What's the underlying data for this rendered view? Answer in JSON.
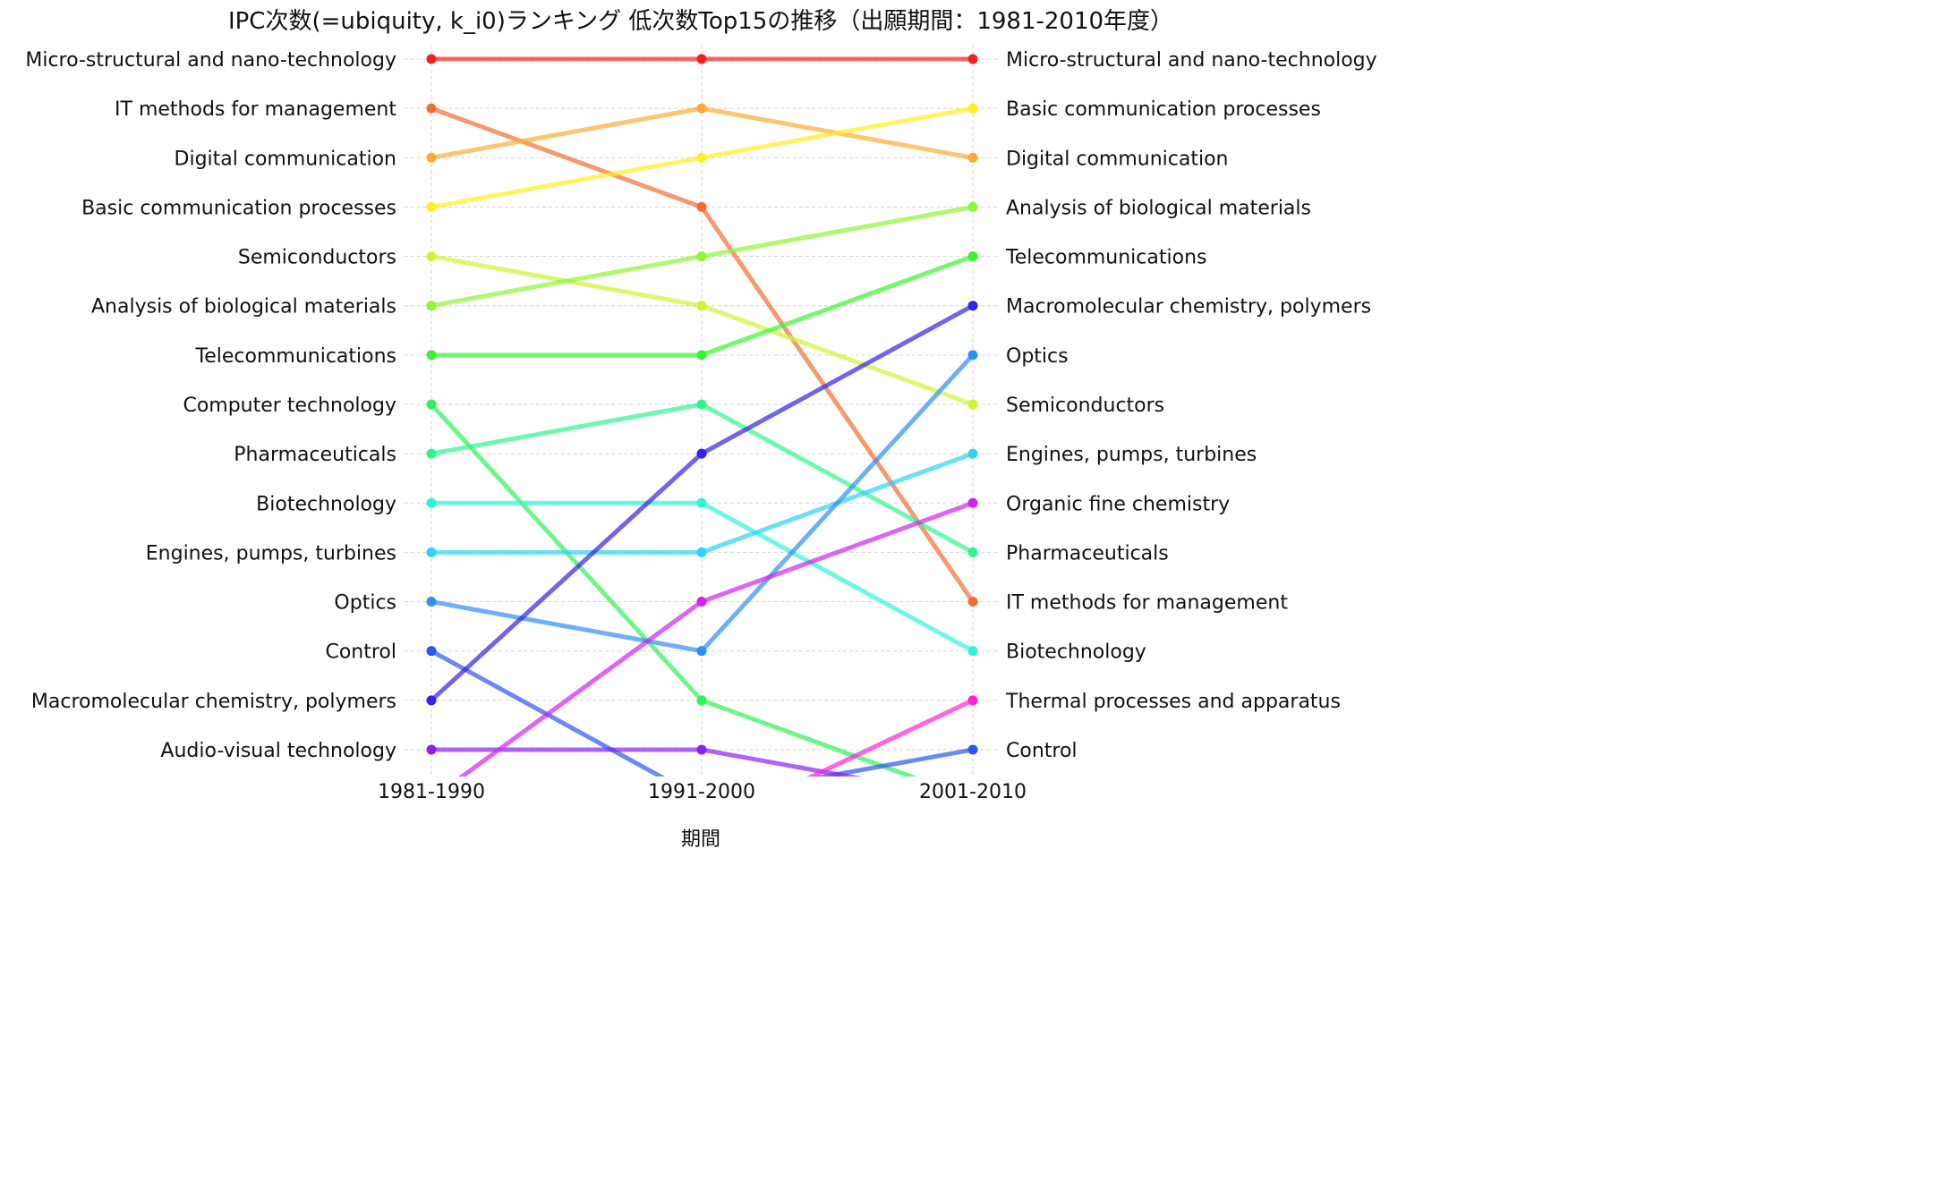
{
  "chart_data": {
    "type": "line",
    "title": "IPC次数(=ubiquity, k_i0)ランキング 低次数Top15の推移（出願期間：1981-2010年度）",
    "xlabel": "期間",
    "ylabel": "",
    "x": [
      "1981-1990",
      "1991-2000",
      "2001-2010"
    ],
    "y_axis": "rank (1 = top), inverted, shown ranks 1-15",
    "ylim": [
      15.6,
      0.9
    ],
    "grid": true,
    "legend": "none",
    "left_labels": [
      "Micro-structural and nano-technology",
      "IT methods for management",
      "Digital communication",
      "Basic communication processes",
      "Semiconductors",
      "Analysis of biological materials",
      "Telecommunications",
      "Computer technology",
      "Pharmaceuticals",
      "Biotechnology",
      "Engines, pumps, turbines",
      "Optics",
      "Control",
      "Macromolecular chemistry, polymers",
      "Audio-visual technology"
    ],
    "right_labels": [
      "Micro-structural and nano-technology",
      "Basic communication processes",
      "Digital communication",
      "Analysis of biological materials",
      "Telecommunications",
      "Macromolecular chemistry, polymers",
      "Optics",
      "Semiconductors",
      "Engines, pumps, turbines",
      "Organic fine chemistry",
      "Pharmaceuticals",
      "IT methods for management",
      "Biotechnology",
      "Thermal processes and apparatus",
      "Control"
    ],
    "series": [
      {
        "name": "Micro-structural and nano-technology",
        "color": "#ee2222",
        "values": [
          1,
          1,
          1
        ]
      },
      {
        "name": "IT methods for management",
        "color": "#f46d2f",
        "values": [
          2,
          4,
          12
        ]
      },
      {
        "name": "Digital communication",
        "color": "#fdab33",
        "values": [
          3,
          2,
          3
        ]
      },
      {
        "name": "Basic communication processes",
        "color": "#ffee22",
        "values": [
          4,
          3,
          2
        ]
      },
      {
        "name": "Semiconductors",
        "color": "#ccf531",
        "values": [
          5,
          6,
          8
        ]
      },
      {
        "name": "Analysis of biological materials",
        "color": "#8ef532",
        "values": [
          6,
          5,
          4
        ]
      },
      {
        "name": "Telecommunications",
        "color": "#3bf32d",
        "values": [
          7,
          7,
          5
        ]
      },
      {
        "name": "Computer technology",
        "color": "#2ef255",
        "values": [
          8,
          14,
          16
        ]
      },
      {
        "name": "Pharmaceuticals",
        "color": "#2ef58e",
        "values": [
          9,
          8,
          11
        ]
      },
      {
        "name": "Biotechnology",
        "color": "#2ef5d6",
        "values": [
          10,
          10,
          13
        ]
      },
      {
        "name": "Engines, pumps, turbines",
        "color": "#2ed2f5",
        "values": [
          11,
          11,
          9
        ]
      },
      {
        "name": "Optics",
        "color": "#2e8ff5",
        "values": [
          12,
          13,
          7
        ]
      },
      {
        "name": "Control",
        "color": "#2e55f0",
        "values": [
          13,
          16,
          15
        ]
      },
      {
        "name": "Macromolecular chemistry, polymers",
        "color": "#3322e8",
        "values": [
          14,
          9,
          6
        ]
      },
      {
        "name": "Audio-visual technology",
        "color": "#8822ee",
        "values": [
          15,
          15,
          16
        ]
      },
      {
        "name": "Organic fine chemistry",
        "color": "#d022ee",
        "values": [
          16,
          12,
          10
        ]
      },
      {
        "name": "Thermal processes and apparatus",
        "color": "#ff22dd",
        "values": [
          null,
          16.6,
          14
        ]
      }
    ]
  }
}
